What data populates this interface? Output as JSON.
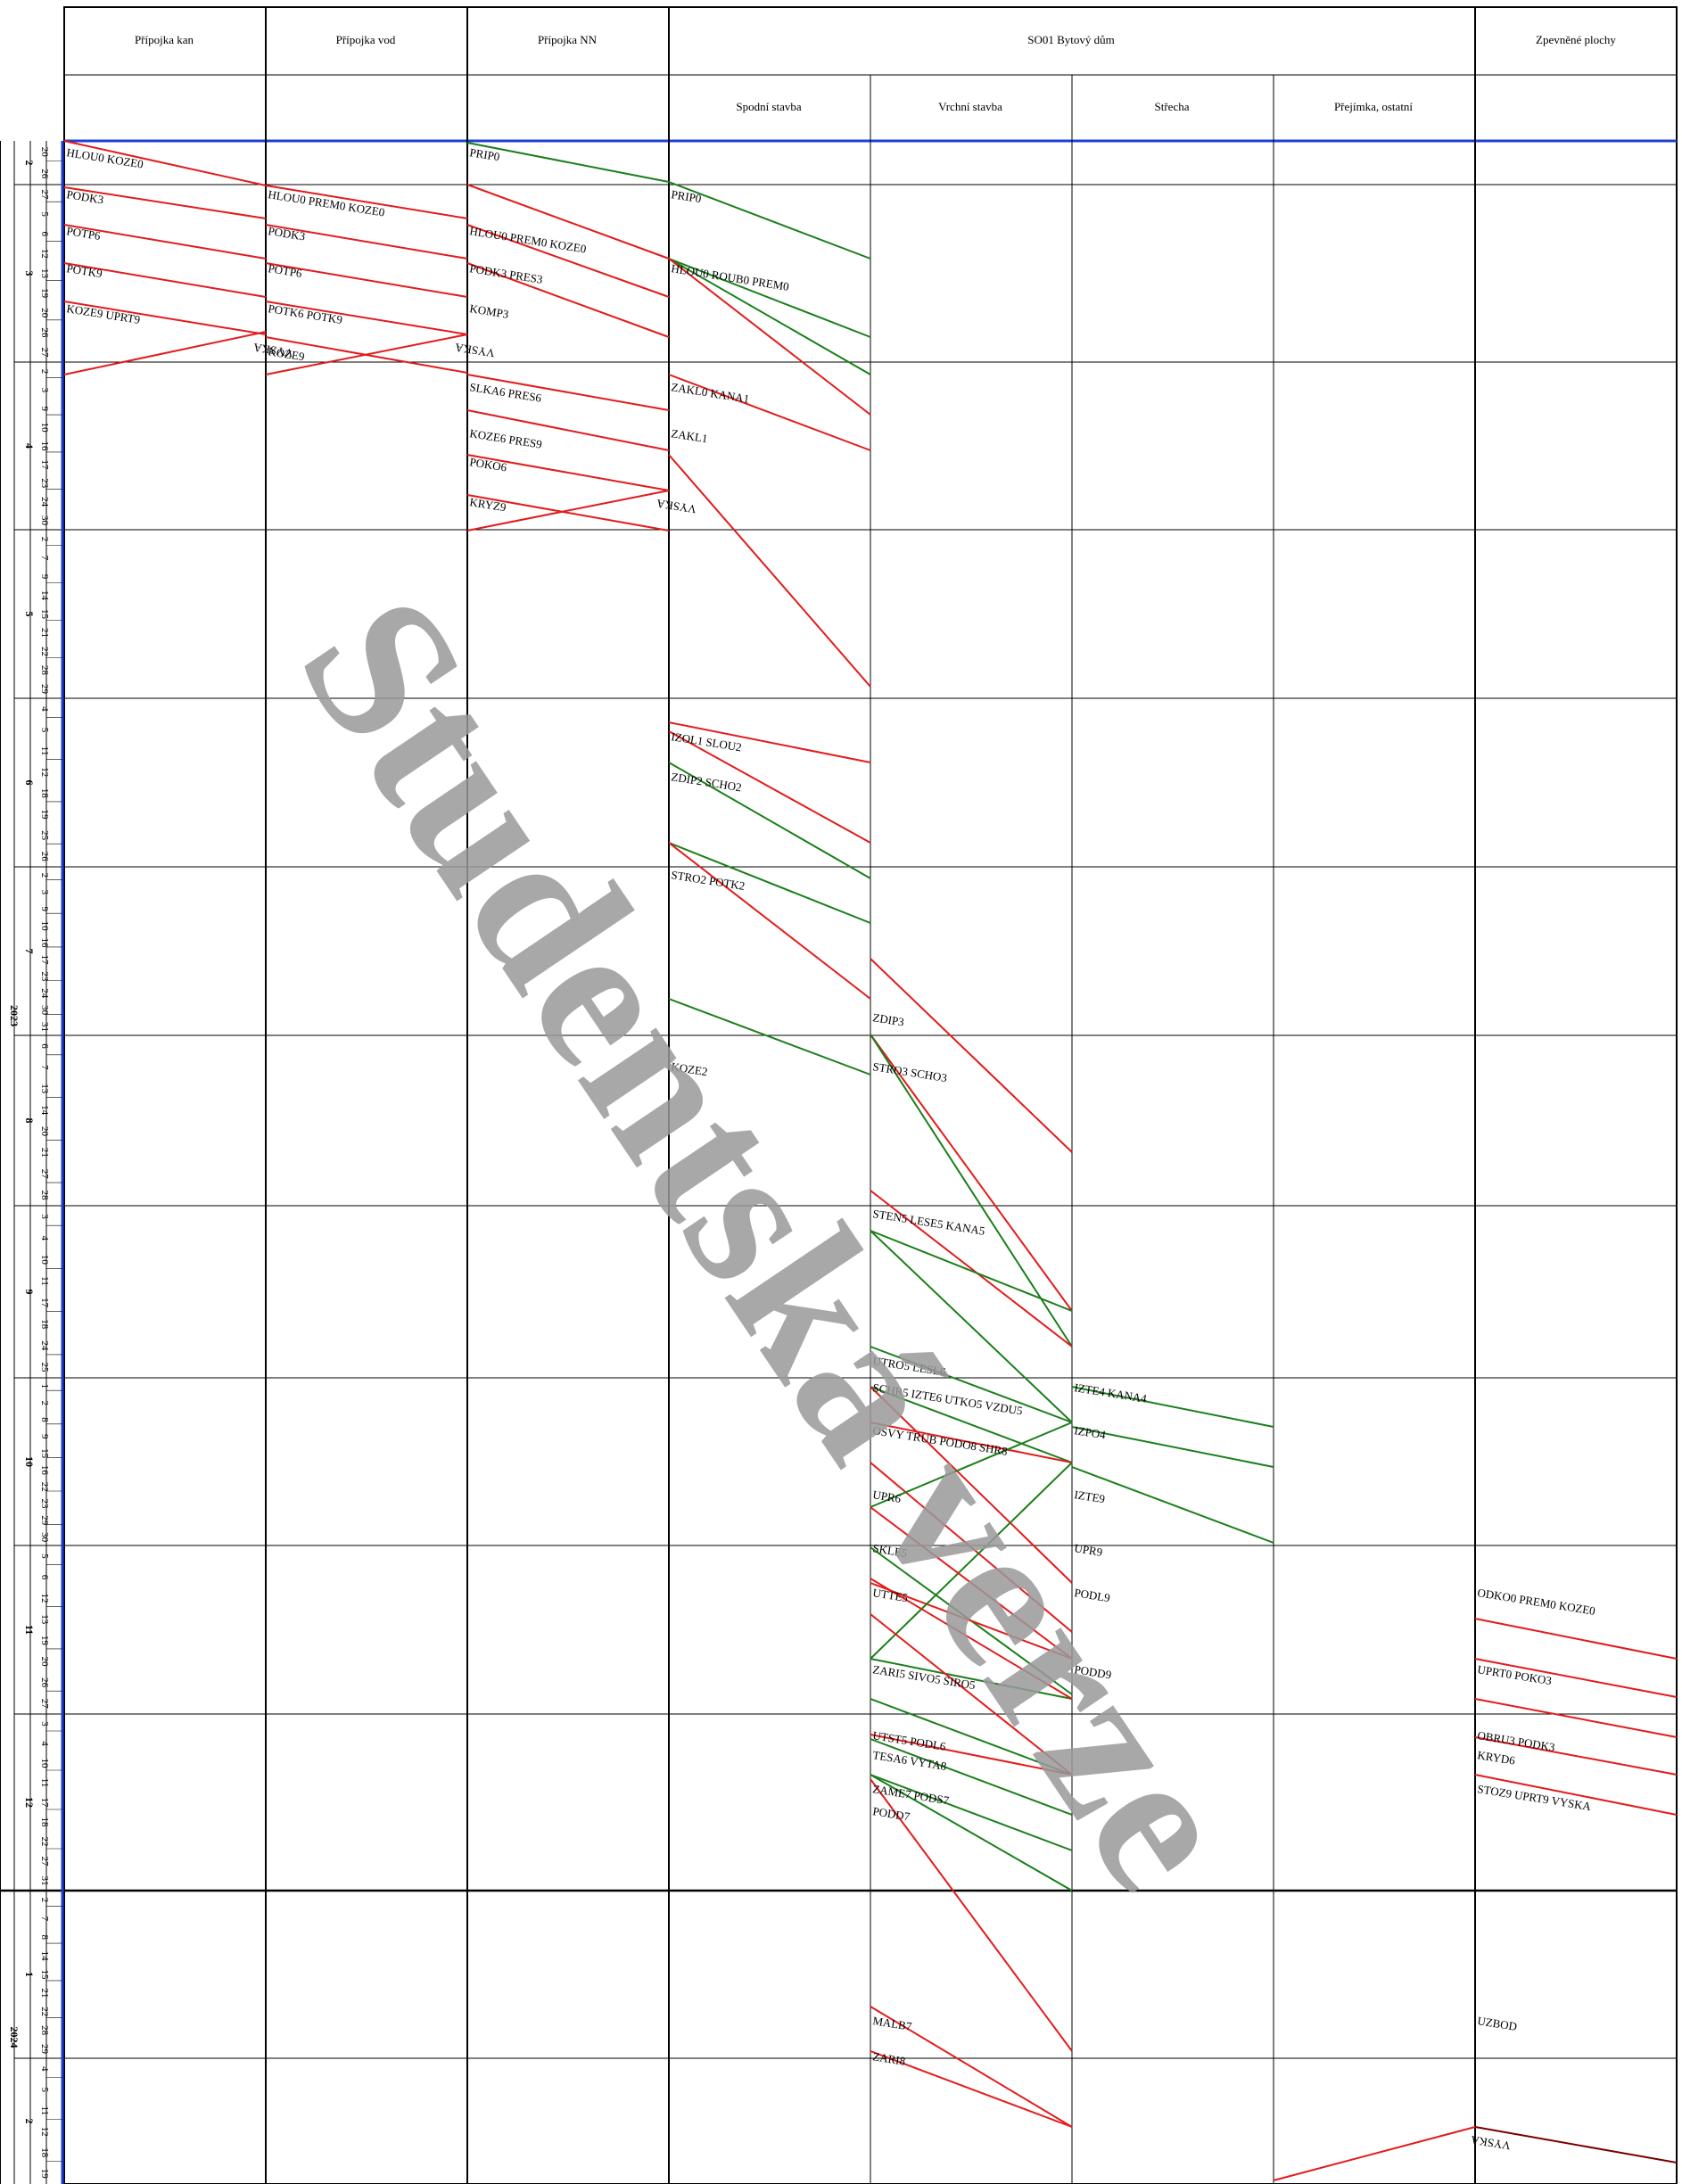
{
  "header": {
    "top": [
      "Přípojka kan",
      "Přípojka vod",
      "Přípojka NN",
      "SO01 Bytový dům",
      "Zpevněné plochy"
    ],
    "sub": [
      "Spodní stavba",
      "Vrchní stavba",
      "Střecha",
      "Přejímka, ostatní"
    ]
  },
  "time_axis": {
    "years": [
      {
        "label": "2023",
        "row_span": [
          0,
          19
        ]
      },
      {
        "label": "2024",
        "row_span": [
          20,
          21
        ]
      }
    ],
    "months": [
      "2",
      "3",
      "4",
      "5",
      "6",
      "7",
      "8",
      "9",
      "10",
      "11",
      "12",
      "1",
      "2"
    ],
    "dates": [
      [
        "20",
        "26"
      ],
      [
        "27",
        "5",
        "6",
        "12",
        "13",
        "19",
        "20",
        "26",
        "27"
      ],
      [
        "2",
        "3",
        "9",
        "10",
        "16",
        "17",
        "23",
        "24",
        "30"
      ],
      [
        "2",
        "7",
        "9",
        "14",
        "15",
        "21",
        "22",
        "28",
        "29"
      ],
      [
        "4",
        "5",
        "11",
        "12",
        "18",
        "19",
        "25",
        "26"
      ],
      [
        "2",
        "3",
        "9",
        "10",
        "16",
        "17",
        "23",
        "24",
        "30",
        "31"
      ],
      [
        "6",
        "7",
        "13",
        "14",
        "20",
        "21",
        "27",
        "28"
      ],
      [
        "3",
        "4",
        "10",
        "11",
        "17",
        "18",
        "24",
        "25"
      ],
      [
        "1",
        "2",
        "8",
        "9",
        "15",
        "16",
        "22",
        "23",
        "29",
        "30"
      ],
      [
        "5",
        "6",
        "12",
        "13",
        "19",
        "20",
        "26",
        "27"
      ],
      [
        "3",
        "4",
        "10",
        "11",
        "17",
        "18",
        "22",
        "27",
        "31"
      ],
      [
        "2",
        "7",
        "8",
        "14",
        "15",
        "21",
        "22",
        "28",
        "29"
      ],
      [
        "4",
        "5",
        "11",
        "12",
        "18",
        "19"
      ]
    ]
  },
  "tasks": [
    {
      "col": 0,
      "row": 0,
      "text": [
        "HLOU0",
        "KOZE0"
      ]
    },
    {
      "col": 0,
      "row": 1,
      "text": [
        "PODK3"
      ]
    },
    {
      "col": 0,
      "row": 2,
      "text": [
        "POTP6"
      ]
    },
    {
      "col": 0,
      "row": 3,
      "text": [
        "POTK9"
      ]
    },
    {
      "col": 0,
      "row": 4,
      "text": [
        "KOZE9",
        "UPRT9"
      ]
    },
    {
      "col": 1,
      "row": 1,
      "text": [
        "HLOU0",
        "PREM0",
        "KOZE0"
      ]
    },
    {
      "col": 1,
      "row": 2,
      "text": [
        "PODK3"
      ]
    },
    {
      "col": 1,
      "row": 3,
      "text": [
        "POTP6"
      ]
    },
    {
      "col": 1,
      "row": 4,
      "text": [
        "POTK6",
        "POTK9"
      ]
    },
    {
      "col": 1,
      "row": 5,
      "text": [
        "KOZE9"
      ]
    },
    {
      "col": 2,
      "row": 0,
      "text": [
        "PRIP0"
      ]
    },
    {
      "col": 2,
      "row": 2,
      "text": [
        "HLOU0",
        "PREM0",
        "KOZE0"
      ]
    },
    {
      "col": 2,
      "row": 3,
      "text": [
        "PODK3",
        "PRES3"
      ]
    },
    {
      "col": 2,
      "row": 4,
      "text": [
        "KOMP3"
      ]
    },
    {
      "col": 2,
      "row": 6,
      "text": [
        "SLKA6",
        "PRES6"
      ]
    },
    {
      "col": 2,
      "row": 7,
      "text": [
        "KOZE6",
        "PRES9"
      ]
    },
    {
      "col": 2,
      "row": 8,
      "text": [
        "POKO6"
      ]
    },
    {
      "col": 2,
      "row": 9,
      "text": [
        "KRYZ9"
      ]
    },
    {
      "col": 3,
      "row": 1,
      "text": [
        "PRIP0"
      ]
    },
    {
      "col": 3,
      "row": 3,
      "text": [
        "HLOU0",
        "ROUB0",
        "PREM0"
      ]
    },
    {
      "col": 3,
      "row": 6,
      "text": [
        "ZAKL0",
        "KANA1"
      ]
    },
    {
      "col": 3,
      "row": 7,
      "text": [
        "ZAKL1"
      ]
    },
    {
      "col": 3,
      "row": 10,
      "text": [
        "IZOL1",
        "SLOU2"
      ]
    },
    {
      "col": 3,
      "row": 11,
      "text": [
        "ZDIP2",
        "SCHO2"
      ]
    },
    {
      "col": 3,
      "row": 12,
      "text": [
        "STRO2",
        "POTK2"
      ]
    },
    {
      "col": 3,
      "row": 14,
      "text": [
        "KOZE2"
      ]
    },
    {
      "col": 4,
      "row": 13,
      "text": [
        "ZDIP3"
      ]
    },
    {
      "col": 4,
      "row": 14,
      "text": [
        "STRO3",
        "SCHO3"
      ]
    },
    {
      "col": 4,
      "row": 16,
      "text": [
        "STEN5",
        "LESE5",
        "KANA5"
      ]
    },
    {
      "col": 4,
      "row": 17,
      "text": [
        "UTRO5",
        "LESL6"
      ]
    },
    {
      "col": 4,
      "row": 18,
      "text": [
        "SCHR5",
        "IZTE6",
        "UTKO5",
        "VZDU5"
      ]
    },
    {
      "col": 4,
      "row": 19,
      "text": [
        "OSVY",
        "TRUB",
        "PODO8",
        "SHR8"
      ]
    },
    {
      "col": 4,
      "row": 20,
      "text": [
        "UPR6"
      ]
    },
    {
      "col": 4,
      "row": 21,
      "text": [
        "SKLE5"
      ]
    },
    {
      "col": 4,
      "row": 22,
      "text": [
        "UTTE5"
      ]
    },
    {
      "col": 4,
      "row": 23,
      "text": [
        "ZARI5",
        "SIVO5",
        "SIRO5"
      ]
    },
    {
      "col": 4,
      "row": 24,
      "text": [
        "UTST5",
        "PODL6"
      ]
    },
    {
      "col": 4,
      "row": 25,
      "text": [
        "TESA6",
        "VYTA8"
      ]
    },
    {
      "col": 4,
      "row": 26,
      "text": [
        "ZAME7",
        "PODS7"
      ]
    },
    {
      "col": 4,
      "row": 27,
      "text": [
        "PODD7"
      ]
    },
    {
      "col": 4,
      "row": 28,
      "text": [
        "MALB7"
      ]
    },
    {
      "col": 4,
      "row": 29,
      "text": [
        "ZARI8"
      ]
    },
    {
      "col": 5,
      "row": 18,
      "text": [
        "IZTE4",
        "KANA4"
      ]
    },
    {
      "col": 5,
      "row": 19,
      "text": [
        "IZPO4"
      ]
    },
    {
      "col": 5,
      "row": 20,
      "text": [
        "IZTE9"
      ]
    },
    {
      "col": 5,
      "row": 21,
      "text": [
        "UPR9"
      ]
    },
    {
      "col": 5,
      "row": 22,
      "text": [
        "PODL9"
      ]
    },
    {
      "col": 5,
      "row": 23,
      "text": [
        "PODD9"
      ]
    },
    {
      "col": 7,
      "row": 22,
      "text": [
        "ODKO0",
        "PREM0",
        "KOZE0"
      ]
    },
    {
      "col": 7,
      "row": 23,
      "text": [
        "UPRT0",
        "POKO3"
      ]
    },
    {
      "col": 7,
      "row": 24,
      "text": [
        "OBRU3",
        "PODK3"
      ]
    },
    {
      "col": 7,
      "row": 25,
      "text": [
        "KRYD6"
      ]
    },
    {
      "col": 7,
      "row": 26,
      "text": [
        "STOZ9",
        "UPRT9",
        "VYSKA"
      ]
    },
    {
      "col": 7,
      "row": 28,
      "text": [
        "UZBOD"
      ]
    }
  ],
  "markers": [
    {
      "col": 0,
      "text": "VYSKA"
    },
    {
      "col": 1,
      "text": "VYSKA"
    },
    {
      "col": 2,
      "text": "VYSKA"
    },
    {
      "col": 6,
      "text": "VYSKA"
    }
  ],
  "watermark": "Studentská verze",
  "colors": {
    "critical": "#e31b1b",
    "normal": "#1a7f1a",
    "milestone": "#7a0000",
    "axis": "#1e3fd6",
    "grid": "#000000"
  }
}
